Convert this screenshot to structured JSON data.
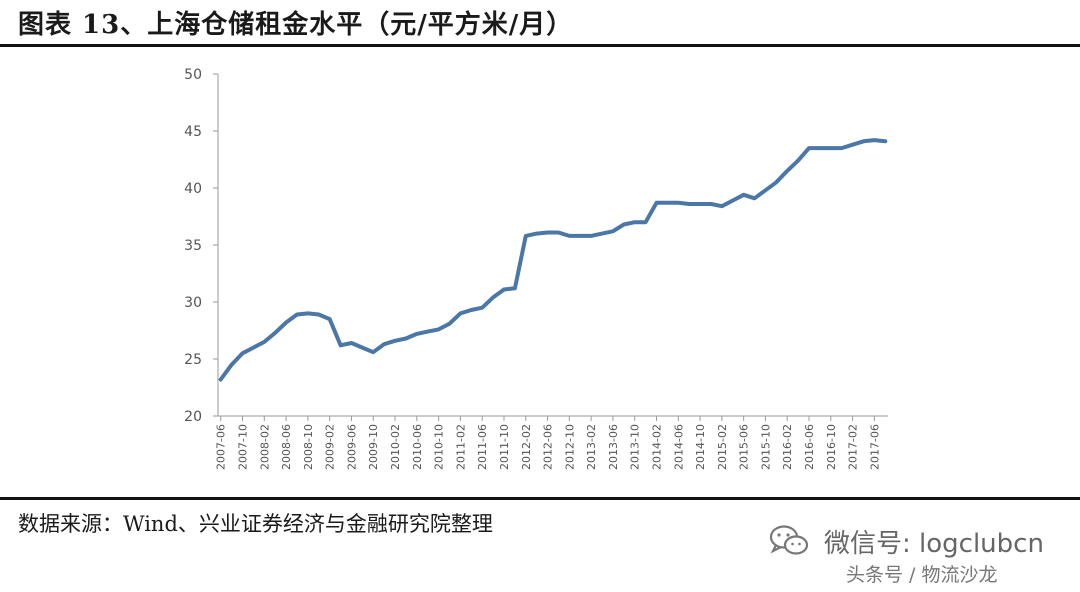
{
  "header": {
    "title": "图表 13、上海仓储租金水平（元/平方米/月）"
  },
  "footer": {
    "source": "数据来源：Wind、兴业证券经济与金融研究院整理",
    "watermark": "微信号: logclubcn",
    "watermark_sub": "头条号 / 物流沙龙",
    "watermark_icon": "wechat-icon"
  },
  "colors": {
    "line": "#4a76a8",
    "axis": "#9a9a9a",
    "rule": "#111111"
  },
  "chart_data": {
    "type": "line",
    "ylim": [
      20,
      50
    ],
    "yticks": [
      20,
      25,
      30,
      35,
      40,
      45,
      50
    ],
    "grid": false,
    "legend": "none",
    "x_tick_labels": [
      "2007-06",
      "2007-10",
      "2008-02",
      "2008-06",
      "2008-10",
      "2009-02",
      "2009-06",
      "2009-10",
      "2010-02",
      "2010-06",
      "2010-10",
      "2011-02",
      "2011-06",
      "2011-10",
      "2012-02",
      "2012-06",
      "2012-10",
      "2013-02",
      "2013-06",
      "2013-10",
      "2014-02",
      "2014-06",
      "2014-10",
      "2015-02",
      "2015-06",
      "2015-10",
      "2016-02",
      "2016-06",
      "2016-10",
      "2017-02",
      "2017-06"
    ],
    "x": [
      "2007-06",
      "2007-08",
      "2007-10",
      "2007-12",
      "2008-02",
      "2008-04",
      "2008-06",
      "2008-08",
      "2008-10",
      "2008-12",
      "2009-02",
      "2009-04",
      "2009-06",
      "2009-08",
      "2009-10",
      "2009-12",
      "2010-02",
      "2010-04",
      "2010-06",
      "2010-08",
      "2010-10",
      "2010-12",
      "2011-02",
      "2011-04",
      "2011-06",
      "2011-08",
      "2011-10",
      "2011-12",
      "2012-02",
      "2012-04",
      "2012-06",
      "2012-08",
      "2012-10",
      "2012-12",
      "2013-02",
      "2013-04",
      "2013-06",
      "2013-08",
      "2013-10",
      "2013-12",
      "2014-02",
      "2014-04",
      "2014-06",
      "2014-08",
      "2014-10",
      "2014-12",
      "2015-02",
      "2015-04",
      "2015-06",
      "2015-08",
      "2015-10",
      "2015-12",
      "2016-02",
      "2016-04",
      "2016-06",
      "2016-08",
      "2016-10",
      "2016-12",
      "2017-02",
      "2017-04",
      "2017-06",
      "2017-08"
    ],
    "series": [
      {
        "values": [
          23.2,
          24.5,
          25.5,
          26.0,
          26.5,
          27.3,
          28.2,
          28.9,
          29.0,
          28.9,
          28.5,
          26.2,
          26.4,
          26.0,
          25.6,
          26.3,
          26.6,
          26.8,
          27.2,
          27.4,
          27.6,
          28.1,
          29.0,
          29.3,
          29.5,
          30.4,
          31.1,
          31.2,
          35.8,
          36.0,
          36.1,
          36.1,
          35.8,
          35.8,
          35.8,
          36.0,
          36.2,
          36.8,
          37.0,
          37.0,
          38.7,
          38.7,
          38.7,
          38.6,
          38.6,
          38.6,
          38.4,
          38.9,
          39.4,
          39.1,
          39.8,
          40.5,
          41.5,
          42.4,
          43.5,
          43.5,
          43.5,
          43.5,
          43.8,
          44.1,
          44.2,
          44.1
        ]
      }
    ]
  }
}
